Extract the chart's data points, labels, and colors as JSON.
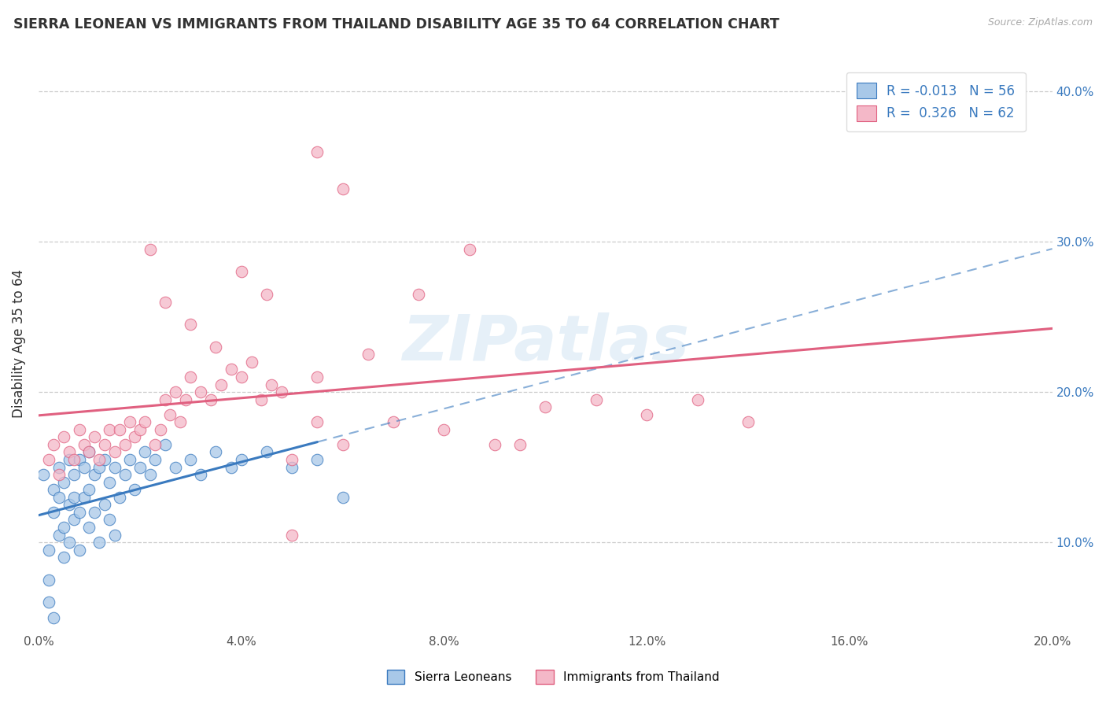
{
  "title": "SIERRA LEONEAN VS IMMIGRANTS FROM THAILAND DISABILITY AGE 35 TO 64 CORRELATION CHART",
  "source": "Source: ZipAtlas.com",
  "ylabel": "Disability Age 35 to 64",
  "legend_label_1": "Sierra Leoneans",
  "legend_label_2": "Immigrants from Thailand",
  "r1": -0.013,
  "n1": 56,
  "r2": 0.326,
  "n2": 62,
  "xlim": [
    0.0,
    0.2
  ],
  "ylim": [
    0.04,
    0.425
  ],
  "xticks": [
    0.0,
    0.04,
    0.08,
    0.12,
    0.16,
    0.2
  ],
  "yticks": [
    0.1,
    0.2,
    0.3,
    0.4
  ],
  "color1": "#a8c8e8",
  "color2": "#f4b8c8",
  "line1_color": "#3a7abf",
  "line2_color": "#e06080",
  "background": "#ffffff",
  "watermark": "ZIPatlas",
  "sierra_x": [
    0.001,
    0.002,
    0.002,
    0.003,
    0.003,
    0.004,
    0.004,
    0.004,
    0.005,
    0.005,
    0.005,
    0.006,
    0.006,
    0.006,
    0.007,
    0.007,
    0.007,
    0.008,
    0.008,
    0.008,
    0.009,
    0.009,
    0.01,
    0.01,
    0.01,
    0.011,
    0.011,
    0.012,
    0.012,
    0.013,
    0.013,
    0.014,
    0.014,
    0.015,
    0.015,
    0.016,
    0.017,
    0.018,
    0.019,
    0.02,
    0.021,
    0.022,
    0.023,
    0.025,
    0.027,
    0.03,
    0.032,
    0.035,
    0.038,
    0.04,
    0.045,
    0.05,
    0.055,
    0.06,
    0.002,
    0.003
  ],
  "sierra_y": [
    0.145,
    0.095,
    0.075,
    0.12,
    0.135,
    0.105,
    0.13,
    0.15,
    0.09,
    0.11,
    0.14,
    0.1,
    0.125,
    0.155,
    0.115,
    0.13,
    0.145,
    0.095,
    0.12,
    0.155,
    0.13,
    0.15,
    0.11,
    0.135,
    0.16,
    0.12,
    0.145,
    0.1,
    0.15,
    0.125,
    0.155,
    0.115,
    0.14,
    0.105,
    0.15,
    0.13,
    0.145,
    0.155,
    0.135,
    0.15,
    0.16,
    0.145,
    0.155,
    0.165,
    0.15,
    0.155,
    0.145,
    0.16,
    0.15,
    0.155,
    0.16,
    0.15,
    0.155,
    0.13,
    0.06,
    0.05
  ],
  "thai_x": [
    0.002,
    0.003,
    0.004,
    0.005,
    0.006,
    0.007,
    0.008,
    0.009,
    0.01,
    0.011,
    0.012,
    0.013,
    0.014,
    0.015,
    0.016,
    0.017,
    0.018,
    0.019,
    0.02,
    0.021,
    0.022,
    0.023,
    0.024,
    0.025,
    0.026,
    0.027,
    0.028,
    0.029,
    0.03,
    0.032,
    0.034,
    0.036,
    0.038,
    0.04,
    0.042,
    0.044,
    0.046,
    0.048,
    0.05,
    0.055,
    0.06,
    0.07,
    0.08,
    0.09,
    0.1,
    0.11,
    0.12,
    0.13,
    0.14,
    0.05,
    0.025,
    0.03,
    0.035,
    0.04,
    0.045,
    0.055,
    0.065,
    0.075,
    0.085,
    0.095,
    0.055,
    0.06
  ],
  "thai_y": [
    0.155,
    0.165,
    0.145,
    0.17,
    0.16,
    0.155,
    0.175,
    0.165,
    0.16,
    0.17,
    0.155,
    0.165,
    0.175,
    0.16,
    0.175,
    0.165,
    0.18,
    0.17,
    0.175,
    0.18,
    0.295,
    0.165,
    0.175,
    0.195,
    0.185,
    0.2,
    0.18,
    0.195,
    0.21,
    0.2,
    0.195,
    0.205,
    0.215,
    0.21,
    0.22,
    0.195,
    0.205,
    0.2,
    0.155,
    0.18,
    0.165,
    0.18,
    0.175,
    0.165,
    0.19,
    0.195,
    0.185,
    0.195,
    0.18,
    0.105,
    0.26,
    0.245,
    0.23,
    0.28,
    0.265,
    0.21,
    0.225,
    0.265,
    0.295,
    0.165,
    0.36,
    0.335
  ]
}
